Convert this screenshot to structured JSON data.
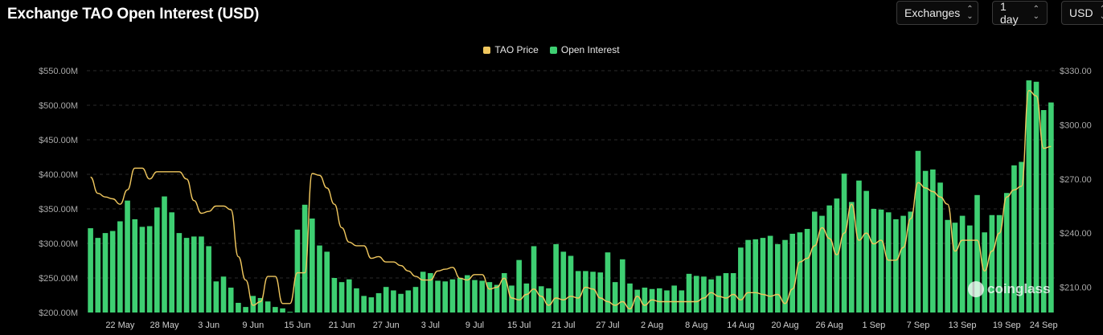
{
  "header": {
    "title": "Exchange TAO Open Interest (USD)",
    "controls": {
      "exchanges_label": "Exchanges",
      "interval_label": "1 day",
      "currency_label": "USD"
    }
  },
  "watermark": {
    "text": "coinglass"
  },
  "chart_data": {
    "type": "bar+line",
    "title": "Exchange TAO Open Interest (USD)",
    "legend_position": "top-center",
    "grid": true,
    "y_left": {
      "unit": "USD",
      "ticks": [
        "$200.00M",
        "$250.00M",
        "$300.00M",
        "$350.00M",
        "$400.00M",
        "$450.00M",
        "$500.00M",
        "$550.00M"
      ],
      "range": [
        200,
        550
      ]
    },
    "y_right": {
      "unit": "USD",
      "ticks": [
        "$210.00",
        "$240.00",
        "$270.00",
        "$300.00",
        "$330.00"
      ],
      "range": [
        196,
        330
      ]
    },
    "x_ticks": [
      "22 May",
      "28 May",
      "3 Jun",
      "9 Jun",
      "15 Jun",
      "21 Jun",
      "27 Jun",
      "3 Jul",
      "9 Jul",
      "15 Jul",
      "21 Jul",
      "27 Jul",
      "2 Aug",
      "8 Aug",
      "14 Aug",
      "20 Aug",
      "26 Aug",
      "1 Sep",
      "7 Sep",
      "13 Sep",
      "19 Sep",
      "24 Sep"
    ],
    "x_tick_index": [
      4,
      10,
      16,
      22,
      28,
      34,
      40,
      46,
      52,
      58,
      64,
      70,
      76,
      82,
      88,
      94,
      100,
      106,
      112,
      118,
      124,
      129
    ],
    "series": [
      {
        "name": "Open Interest",
        "type": "bar",
        "color": "#3ecf72",
        "unit": "million USD",
        "values": [
          322,
          308,
          315,
          318,
          332,
          362,
          335,
          324,
          325,
          352,
          368,
          345,
          315,
          308,
          310,
          310,
          296,
          245,
          252,
          236,
          214,
          208,
          224,
          221,
          216,
          208,
          206,
          201,
          320,
          356,
          336,
          297,
          288,
          250,
          244,
          248,
          235,
          224,
          222,
          228,
          237,
          232,
          227,
          232,
          237,
          259,
          257,
          246,
          245,
          248,
          250,
          254,
          247,
          246,
          244,
          240,
          257,
          239,
          276,
          242,
          296,
          238,
          235,
          299,
          288,
          282,
          260,
          260,
          259,
          258,
          287,
          244,
          277,
          242,
          233,
          236,
          234,
          235,
          232,
          239,
          232,
          256,
          253,
          252,
          248,
          253,
          257,
          257,
          294,
          305,
          306,
          308,
          311,
          299,
          305,
          314,
          316,
          321,
          346,
          340,
          355,
          365,
          401,
          360,
          391,
          376,
          350,
          349,
          345,
          335,
          340,
          346,
          434,
          405,
          407,
          388,
          334,
          330,
          340,
          326,
          370,
          316,
          341,
          341,
          373,
          413,
          418,
          536,
          534,
          493,
          504
        ]
      },
      {
        "name": "TAO Price",
        "type": "line",
        "color": "#f0c75e",
        "unit": "USD",
        "values": [
          271,
          262,
          260,
          259,
          256,
          264,
          276,
          276,
          270,
          274,
          274,
          274,
          274,
          270,
          258,
          251,
          252,
          255,
          255,
          253,
          227,
          214,
          200,
          202,
          216,
          216,
          201,
          201,
          218,
          218,
          273,
          272,
          265,
          256,
          243,
          235,
          233,
          233,
          226,
          227,
          224,
          224,
          222,
          219,
          216,
          214,
          214,
          219,
          220,
          221,
          215,
          214,
          217,
          217,
          209,
          210,
          215,
          204,
          203,
          206,
          209,
          205,
          200,
          204,
          203,
          205,
          204,
          210,
          209,
          204,
          202,
          200,
          202,
          198,
          205,
          200,
          203,
          202,
          202,
          202,
          202,
          202,
          202,
          204,
          207,
          205,
          204,
          206,
          203,
          207,
          207,
          206,
          205,
          206,
          201,
          209,
          224,
          226,
          233,
          243,
          237,
          228,
          240,
          256,
          236,
          240,
          234,
          236,
          225,
          225,
          232,
          248,
          268,
          265,
          263,
          260,
          256,
          230,
          236,
          236,
          236,
          219,
          230,
          240,
          260,
          264,
          266,
          319,
          316,
          287,
          288
        ]
      }
    ]
  }
}
